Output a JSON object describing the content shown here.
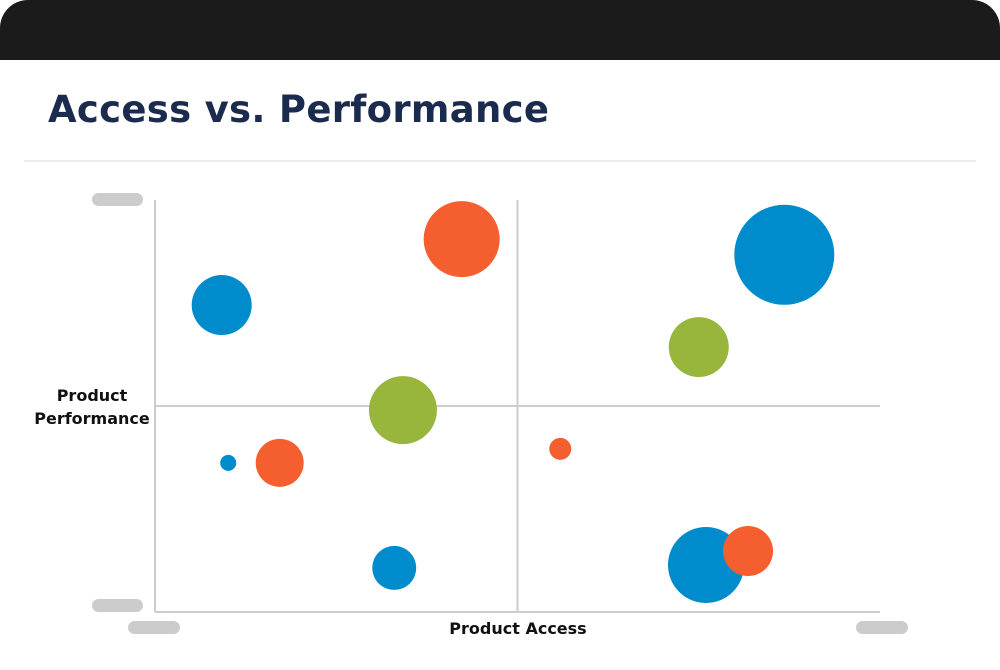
{
  "title": "Access vs. Performance",
  "chart_data": {
    "type": "scatter",
    "subtype": "bubble",
    "title": "Access vs. Performance",
    "xlabel": "Product Access",
    "ylabel": "Product Performance",
    "xlim": [
      0,
      100
    ],
    "ylim": [
      0,
      100
    ],
    "quadrant_lines": {
      "x": 50,
      "y": 50
    },
    "tick_labels_hidden": true,
    "colors": {
      "orange": "#F55F2F",
      "blue": "#008BCD",
      "green": "#98B63C"
    },
    "points": [
      {
        "x": 42.3,
        "y": 90.5,
        "size": 38,
        "color": "orange"
      },
      {
        "x": 86.8,
        "y": 86.7,
        "size": 50,
        "color": "blue"
      },
      {
        "x": 9.2,
        "y": 74.5,
        "size": 30,
        "color": "blue"
      },
      {
        "x": 75.0,
        "y": 64.3,
        "size": 30,
        "color": "green"
      },
      {
        "x": 34.2,
        "y": 49.0,
        "size": 34,
        "color": "green"
      },
      {
        "x": 10.1,
        "y": 36.2,
        "size": 8,
        "color": "blue"
      },
      {
        "x": 17.2,
        "y": 36.2,
        "size": 24,
        "color": "orange"
      },
      {
        "x": 55.9,
        "y": 39.6,
        "size": 11,
        "color": "orange"
      },
      {
        "x": 33.0,
        "y": 10.7,
        "size": 22,
        "color": "blue"
      },
      {
        "x": 76.0,
        "y": 11.4,
        "size": 38,
        "color": "blue"
      },
      {
        "x": 81.8,
        "y": 14.8,
        "size": 25,
        "color": "orange"
      }
    ]
  }
}
